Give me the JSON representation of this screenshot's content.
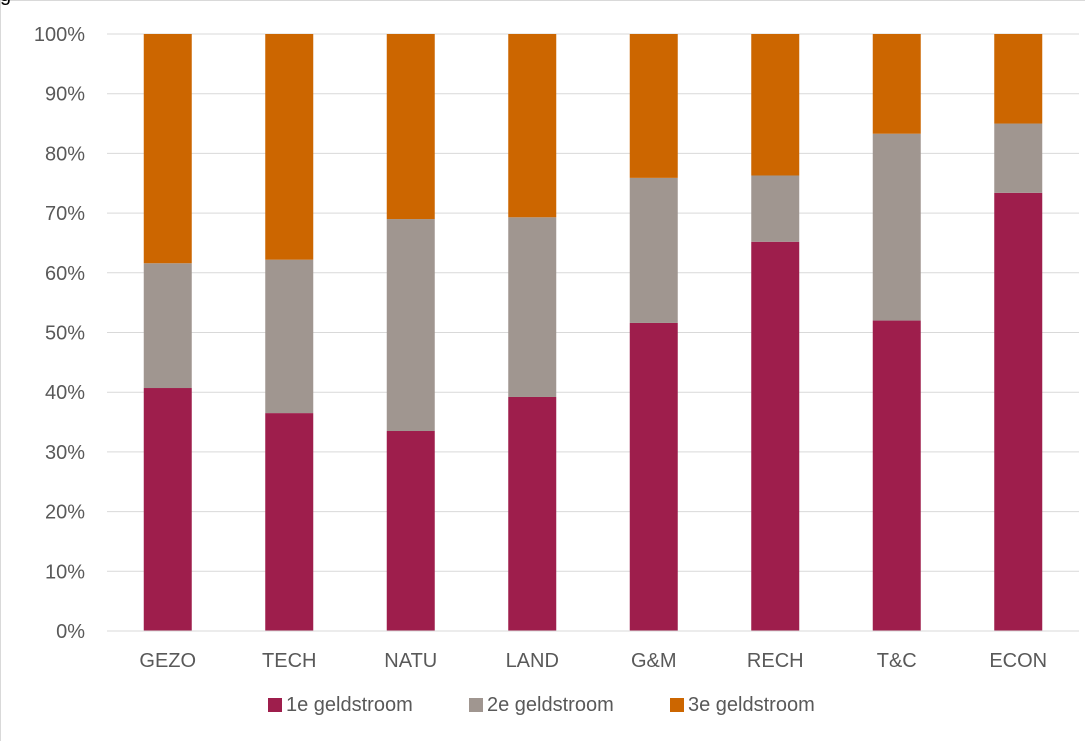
{
  "caption": "g",
  "chart_data": {
    "type": "bar",
    "stacked": true,
    "categories": [
      "GEZO",
      "TECH",
      "NATU",
      "LAND",
      "G&M",
      "RECH",
      "T&C",
      "ECON"
    ],
    "series": [
      {
        "name": "1e geldstroom",
        "color": "#9e1e4c",
        "values": [
          40.7,
          36.5,
          33.5,
          39.2,
          51.6,
          65.2,
          52.0,
          73.4
        ]
      },
      {
        "name": "2e geldstroom",
        "color": "#a09690",
        "values": [
          20.9,
          25.7,
          35.5,
          30.1,
          24.3,
          11.1,
          31.3,
          11.6
        ]
      },
      {
        "name": "3e geldstroom",
        "color": "#cc6600",
        "values": [
          38.4,
          37.8,
          31.0,
          30.7,
          24.1,
          23.7,
          16.7,
          15.0
        ]
      }
    ],
    "y_ticks": [
      "0%",
      "10%",
      "20%",
      "30%",
      "40%",
      "50%",
      "60%",
      "70%",
      "80%",
      "90%",
      "100%"
    ],
    "ylim": [
      0,
      100
    ],
    "grid": true,
    "legend_position": "bottom"
  }
}
